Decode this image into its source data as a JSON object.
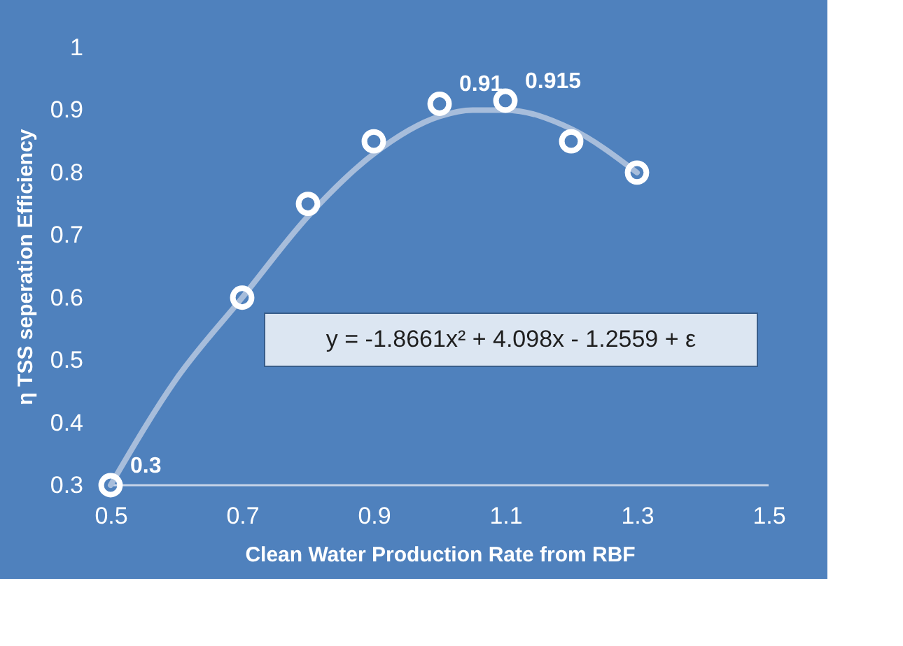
{
  "chart_data": {
    "type": "scatter",
    "xlabel": "Clean Water Production  Rate from RBF",
    "ylabel": "η TSS seperation Efficiency",
    "x": [
      0.5,
      0.7,
      0.8,
      0.9,
      1.0,
      1.1,
      1.2,
      1.3
    ],
    "series": [
      {
        "color": "#ffffff",
        "values": [
          0.3,
          0.6,
          0.75,
          0.85,
          0.91,
          0.915,
          0.85,
          0.8
        ],
        "value_labels": [
          "0.3",
          null,
          null,
          null,
          "0.91",
          "0.915",
          null,
          null
        ],
        "marker": "circle"
      },
      {
        "type": "line",
        "color": "#a7bddb",
        "x": [
          0.5,
          0.6,
          0.7,
          0.8,
          0.9,
          1.0,
          1.05,
          1.1,
          1.2,
          1.3
        ],
        "values": [
          0.3,
          0.47,
          0.6,
          0.73,
          0.83,
          0.89,
          0.9,
          0.9,
          0.87,
          0.8
        ],
        "marker": "none",
        "line_style": "solid"
      }
    ],
    "annotations": [
      "y = -1.8661x² + 4.098x - 1.2559 + ε"
    ],
    "xlim": [
      0.5,
      1.5
    ],
    "xticks": [
      0.5,
      0.7,
      0.9,
      1.1,
      1.3,
      1.5
    ],
    "ylim": [
      0.3,
      1
    ],
    "yticks": [
      0.3,
      0.4,
      0.5,
      0.6,
      0.7,
      0.8,
      0.9,
      {
        "value": 1,
        "label": "1"
      }
    ],
    "grid": false
  }
}
